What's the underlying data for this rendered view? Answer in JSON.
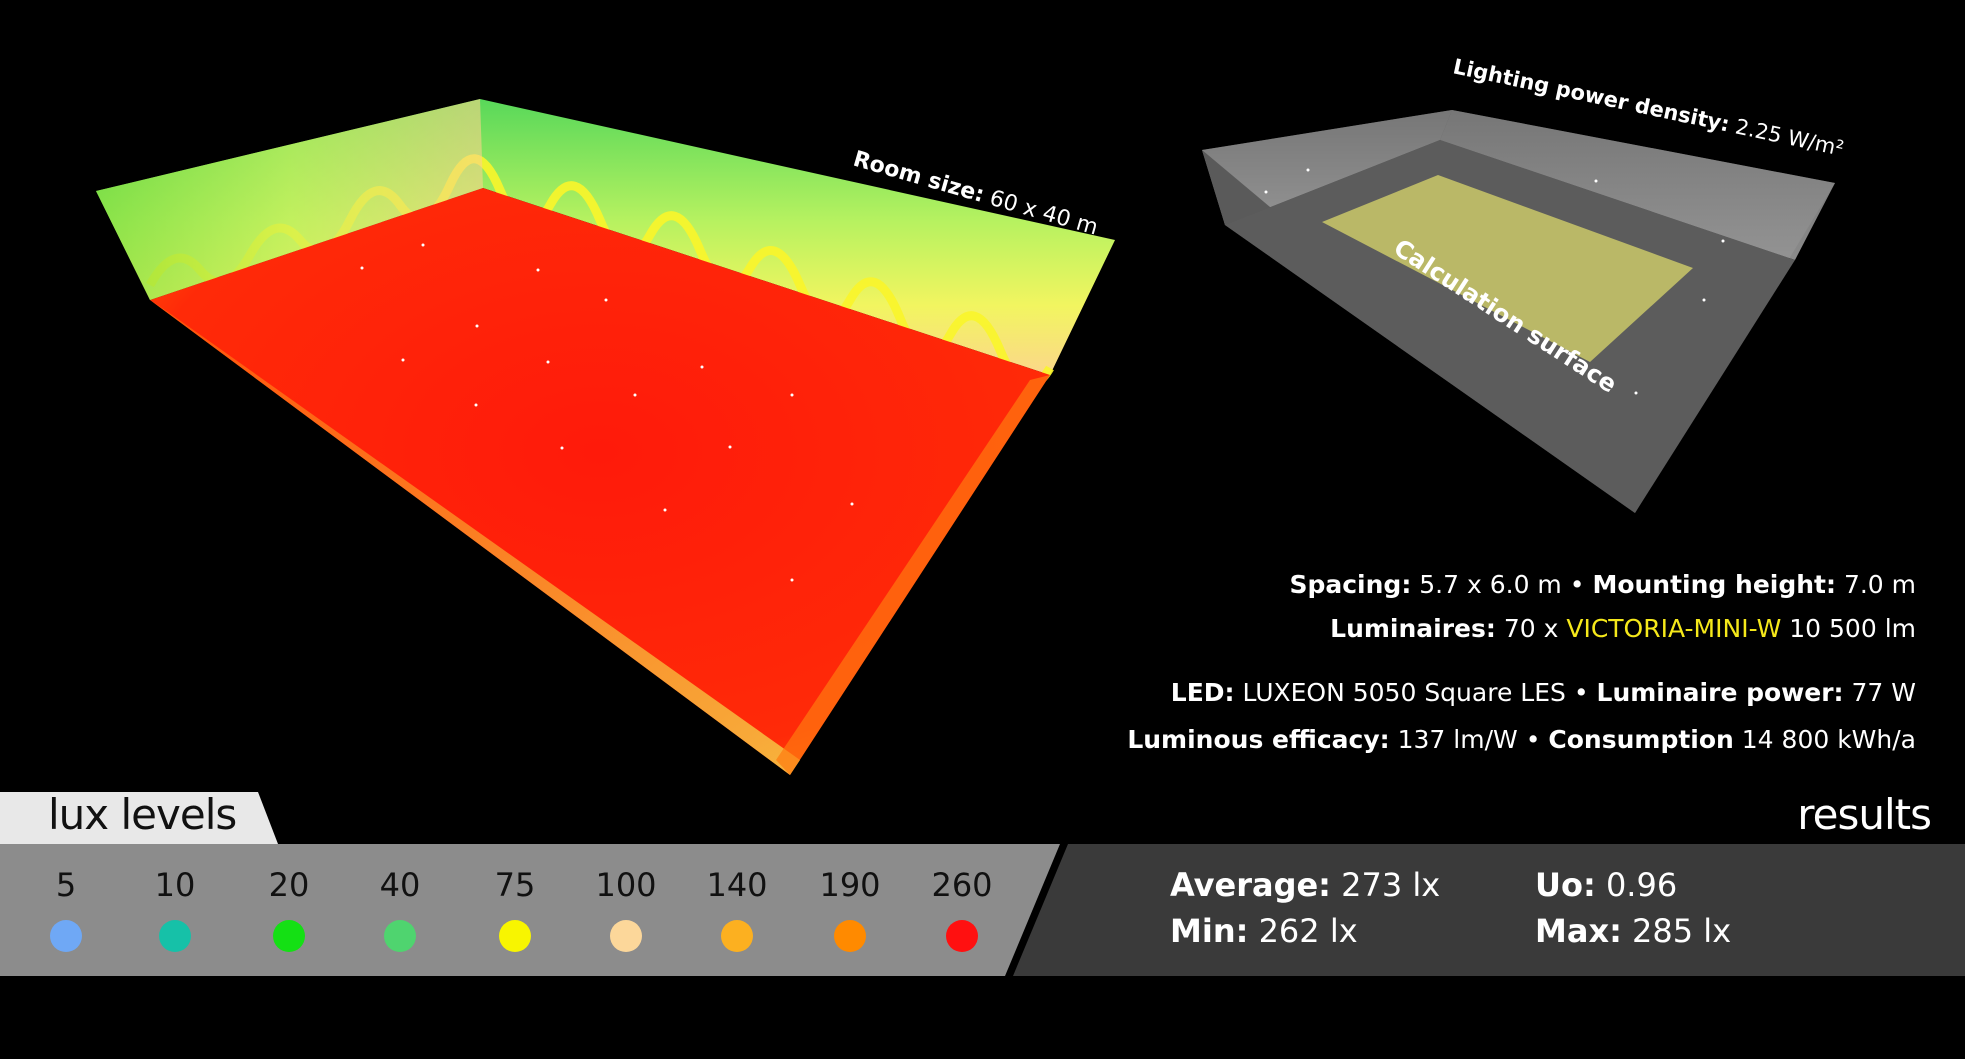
{
  "scene_left": {
    "room_size_label": "Room size:",
    "room_size_value": "60 x 40 m"
  },
  "scene_right": {
    "lpd_label": "Lighting power density:",
    "lpd_value": "2.25 W/m²",
    "calc_surface_label": "Calculation surface"
  },
  "info": {
    "spacing_label": "Spacing:",
    "spacing_value": "5.7 x 6.0 m",
    "mounting_label": "Mounting height:",
    "mounting_value": "7.0 m",
    "luminaires_label": "Luminaires:",
    "luminaires_count": "70 x",
    "luminaires_model": "VICTORIA-MINI-W",
    "luminaires_flux": "10 500 lm",
    "led_label": "LED:",
    "led_value": "LUXEON 5050 Square LES",
    "power_label": "Luminaire power:",
    "power_value": "77 W",
    "efficacy_label": "Luminous efficacy:",
    "efficacy_value": "137 lm/W",
    "consumption_label": "Consumption",
    "consumption_value": "14 800 kWh/a",
    "bullet": "•"
  },
  "legend": {
    "title": "lux levels",
    "levels": [
      {
        "value": "5",
        "color": "#6fa8f5"
      },
      {
        "value": "10",
        "color": "#16c1a8"
      },
      {
        "value": "20",
        "color": "#14e014"
      },
      {
        "value": "40",
        "color": "#4fd46f"
      },
      {
        "value": "75",
        "color": "#f8f500"
      },
      {
        "value": "100",
        "color": "#fcd79a"
      },
      {
        "value": "140",
        "color": "#fcb020"
      },
      {
        "value": "190",
        "color": "#ff8a00"
      },
      {
        "value": "260",
        "color": "#ff1010"
      }
    ]
  },
  "results": {
    "title": "results",
    "average_label": "Average:",
    "average_value": "273 lx",
    "min_label": "Min:",
    "min_value": "262 lx",
    "uo_label": "Uo:",
    "uo_value": "0.96",
    "max_label": "Max:",
    "max_value": "285 lx"
  }
}
